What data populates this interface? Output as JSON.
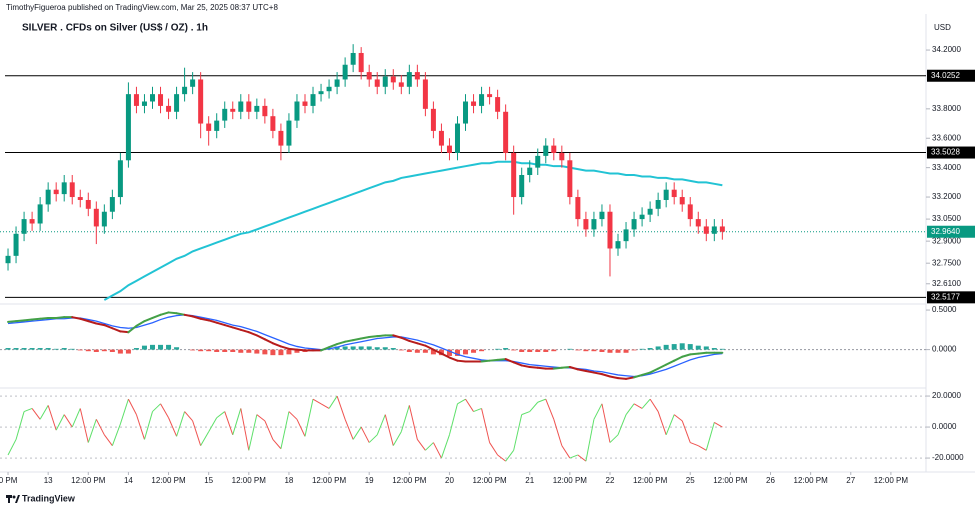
{
  "header": {
    "publisher": "TimothyFigueroa published on TradingView.com, Mar 25, 2025 08:37 UTC+8"
  },
  "footer": {
    "brand": "TradingView"
  },
  "chart_data": [
    {
      "type": "candlestick",
      "title": "SILVER . CFDs on Silver (US$ / OZ) . 1h",
      "currency": "USD",
      "x": [
        0,
        1,
        2,
        3,
        4,
        5,
        6,
        7,
        8,
        9,
        10,
        11,
        12,
        13,
        14,
        15,
        16,
        17,
        18,
        19,
        20,
        21,
        22,
        23,
        24,
        25,
        26,
        27,
        28,
        29,
        30,
        31,
        32,
        33,
        34,
        35,
        36,
        37,
        38,
        39,
        40,
        41,
        42,
        43,
        44,
        45,
        46,
        47,
        48,
        49,
        50,
        51,
        52,
        53,
        54,
        55,
        56,
        57,
        58,
        59,
        60,
        61,
        62,
        63,
        64,
        65,
        66,
        67,
        68,
        69,
        70,
        71,
        72,
        73,
        74,
        75,
        76,
        77,
        78,
        79,
        80,
        81,
        82,
        83,
        84,
        85,
        86,
        87,
        88,
        89
      ],
      "open": [
        32.75,
        32.8,
        32.95,
        33.05,
        33.02,
        33.15,
        33.25,
        33.22,
        33.3,
        33.2,
        33.18,
        33.12,
        33.0,
        33.1,
        33.2,
        33.45,
        33.9,
        33.82,
        33.85,
        33.9,
        33.82,
        33.78,
        33.9,
        33.95,
        34.0,
        33.7,
        33.65,
        33.72,
        33.8,
        33.78,
        33.85,
        33.78,
        33.82,
        33.75,
        33.65,
        33.55,
        33.72,
        33.85,
        33.82,
        33.9,
        33.92,
        33.95,
        34.0,
        34.1,
        34.18,
        34.05,
        34.0,
        33.95,
        34.02,
        33.98,
        33.95,
        34.05,
        34.0,
        33.8,
        33.65,
        33.55,
        33.5,
        33.7,
        33.85,
        33.82,
        33.9,
        33.88,
        33.78,
        33.5,
        33.2,
        33.35,
        33.4,
        33.48,
        33.55,
        33.5,
        33.45,
        33.2,
        33.05,
        32.98,
        33.05,
        33.1,
        32.85,
        32.9,
        32.98,
        33.05,
        33.08,
        33.12,
        33.18,
        33.25,
        33.2,
        33.15,
        33.05,
        33.0,
        32.95,
        33.0
      ],
      "high": [
        32.85,
        33.0,
        33.1,
        33.1,
        33.2,
        33.3,
        33.3,
        33.35,
        33.35,
        33.25,
        33.23,
        33.17,
        33.15,
        33.25,
        33.5,
        33.98,
        33.95,
        33.9,
        33.95,
        33.95,
        33.87,
        33.95,
        34.08,
        34.05,
        34.05,
        33.75,
        33.77,
        33.85,
        33.85,
        33.9,
        33.9,
        33.87,
        33.87,
        33.8,
        33.7,
        33.77,
        33.9,
        33.9,
        33.95,
        33.97,
        34.0,
        34.05,
        34.15,
        34.24,
        34.22,
        34.1,
        34.05,
        34.07,
        34.07,
        34.03,
        34.1,
        34.1,
        34.05,
        33.85,
        33.7,
        33.6,
        33.75,
        33.9,
        33.9,
        33.95,
        33.95,
        33.93,
        33.83,
        33.55,
        33.4,
        33.45,
        33.53,
        33.6,
        33.6,
        33.55,
        33.5,
        33.25,
        33.1,
        33.1,
        33.15,
        33.15,
        32.95,
        33.03,
        33.1,
        33.13,
        33.17,
        33.23,
        33.3,
        33.3,
        33.25,
        33.2,
        33.1,
        33.05,
        33.05,
        33.05
      ],
      "low": [
        32.7,
        32.75,
        32.9,
        32.97,
        32.97,
        33.1,
        33.17,
        33.17,
        33.15,
        33.13,
        33.07,
        32.88,
        32.95,
        33.05,
        33.15,
        33.4,
        33.77,
        33.77,
        33.8,
        33.77,
        33.73,
        33.73,
        33.85,
        33.9,
        33.6,
        33.55,
        33.6,
        33.67,
        33.73,
        33.73,
        33.73,
        33.73,
        33.7,
        33.6,
        33.45,
        33.5,
        33.67,
        33.77,
        33.77,
        33.85,
        33.87,
        33.9,
        33.95,
        34.05,
        34.0,
        33.95,
        33.9,
        33.9,
        33.93,
        33.9,
        33.9,
        33.95,
        33.75,
        33.6,
        33.5,
        33.45,
        33.45,
        33.65,
        33.77,
        33.77,
        33.83,
        33.73,
        33.45,
        33.08,
        33.15,
        33.3,
        33.35,
        33.43,
        33.45,
        33.4,
        33.15,
        33.0,
        32.93,
        32.93,
        33.0,
        32.66,
        32.8,
        32.85,
        32.93,
        33.0,
        33.03,
        33.07,
        33.13,
        33.15,
        33.1,
        33.0,
        32.95,
        32.9,
        32.9,
        32.91
      ],
      "close": [
        32.8,
        32.95,
        33.05,
        33.02,
        33.15,
        33.25,
        33.22,
        33.3,
        33.2,
        33.18,
        33.12,
        33.0,
        33.1,
        33.2,
        33.45,
        33.9,
        33.82,
        33.85,
        33.9,
        33.82,
        33.78,
        33.9,
        33.95,
        34.0,
        33.7,
        33.65,
        33.72,
        33.8,
        33.78,
        33.85,
        33.78,
        33.82,
        33.75,
        33.65,
        33.55,
        33.72,
        33.85,
        33.82,
        33.9,
        33.92,
        33.95,
        34.0,
        34.1,
        34.18,
        34.05,
        34.0,
        33.95,
        34.02,
        33.98,
        33.95,
        34.05,
        34.0,
        33.8,
        33.65,
        33.55,
        33.5,
        33.7,
        33.85,
        33.82,
        33.9,
        33.88,
        33.78,
        33.5,
        33.2,
        33.35,
        33.4,
        33.48,
        33.55,
        33.5,
        33.45,
        33.2,
        33.05,
        32.98,
        33.05,
        33.1,
        32.85,
        32.9,
        32.98,
        33.05,
        33.08,
        33.12,
        33.18,
        33.25,
        33.2,
        33.15,
        33.05,
        33.0,
        32.95,
        33.0,
        32.964
      ],
      "up_color": "#089981",
      "down_color": "#f23645",
      "overlays": [
        {
          "color": "#22c3d4",
          "values": [
            null,
            null,
            null,
            null,
            null,
            null,
            null,
            null,
            null,
            null,
            null,
            null,
            32.5,
            32.53,
            32.56,
            32.6,
            32.63,
            32.66,
            32.69,
            32.72,
            32.75,
            32.78,
            32.8,
            32.83,
            32.85,
            32.87,
            32.89,
            32.91,
            32.93,
            32.95,
            32.96,
            32.98,
            33.0,
            33.02,
            33.04,
            33.06,
            33.08,
            33.1,
            33.12,
            33.14,
            33.16,
            33.18,
            33.2,
            33.22,
            33.24,
            33.26,
            33.28,
            33.3,
            33.31,
            33.33,
            33.34,
            33.35,
            33.36,
            33.37,
            33.38,
            33.39,
            33.4,
            33.41,
            33.42,
            33.43,
            33.43,
            33.44,
            33.44,
            33.44,
            33.43,
            33.43,
            33.42,
            33.42,
            33.41,
            33.41,
            33.4,
            33.39,
            33.38,
            33.38,
            33.37,
            33.36,
            33.36,
            33.35,
            33.35,
            33.34,
            33.34,
            33.33,
            33.33,
            33.32,
            33.32,
            33.31,
            33.3,
            33.3,
            33.29,
            33.28
          ]
        }
      ],
      "levels": [
        34.0252,
        33.5028,
        32.5177
      ],
      "level_color": "#000000",
      "last_price": {
        "value": 32.964,
        "label": "32.9640"
      },
      "last_color": "#089981",
      "ylim": [
        32.486,
        34.418
      ],
      "yticks": [
        {
          "value": 34.2,
          "label": "34.2000"
        },
        {
          "value": 33.8,
          "label": "33.8000"
        },
        {
          "value": 33.6,
          "label": "33.6000"
        },
        {
          "value": 33.4,
          "label": "33.4000"
        },
        {
          "value": 33.2,
          "label": "33.2000"
        },
        {
          "value": 33.05,
          "label": "33.0500"
        },
        {
          "value": 32.9,
          "label": "32.9000"
        },
        {
          "value": 32.75,
          "label": "32.7500"
        },
        {
          "value": 32.61,
          "label": "32.6100"
        }
      ]
    },
    {
      "type": "macd",
      "fast": [
        0.35,
        0.36,
        0.37,
        0.38,
        0.39,
        0.4,
        0.4,
        0.41,
        0.41,
        0.39,
        0.36,
        0.33,
        0.31,
        0.27,
        0.23,
        0.22,
        0.3,
        0.36,
        0.4,
        0.44,
        0.47,
        0.46,
        0.44,
        0.42,
        0.39,
        0.37,
        0.34,
        0.31,
        0.28,
        0.25,
        0.22,
        0.18,
        0.13,
        0.08,
        0.04,
        0.01,
        0.0,
        -0.01,
        -0.01,
        -0.01,
        0.03,
        0.07,
        0.1,
        0.12,
        0.14,
        0.16,
        0.17,
        0.18,
        0.18,
        0.15,
        0.11,
        0.08,
        0.05,
        0.0,
        -0.05,
        -0.1,
        -0.14,
        -0.15,
        -0.15,
        -0.15,
        -0.14,
        -0.13,
        -0.12,
        -0.16,
        -0.2,
        -0.22,
        -0.23,
        -0.24,
        -0.24,
        -0.23,
        -0.22,
        -0.25,
        -0.27,
        -0.29,
        -0.31,
        -0.34,
        -0.36,
        -0.37,
        -0.35,
        -0.32,
        -0.29,
        -0.24,
        -0.19,
        -0.14,
        -0.09,
        -0.06,
        -0.05,
        -0.04,
        -0.04,
        -0.04
      ],
      "signal": [
        0.33,
        0.34,
        0.35,
        0.36,
        0.37,
        0.38,
        0.39,
        0.39,
        0.4,
        0.4,
        0.38,
        0.36,
        0.33,
        0.3,
        0.28,
        0.27,
        0.28,
        0.31,
        0.34,
        0.38,
        0.41,
        0.43,
        0.44,
        0.43,
        0.41,
        0.39,
        0.37,
        0.34,
        0.31,
        0.29,
        0.26,
        0.23,
        0.19,
        0.15,
        0.11,
        0.07,
        0.04,
        0.02,
        0.01,
        0.0,
        0.01,
        0.03,
        0.06,
        0.08,
        0.1,
        0.12,
        0.14,
        0.15,
        0.16,
        0.16,
        0.14,
        0.12,
        0.09,
        0.06,
        0.02,
        -0.02,
        -0.06,
        -0.09,
        -0.11,
        -0.13,
        -0.14,
        -0.14,
        -0.14,
        -0.15,
        -0.17,
        -0.19,
        -0.2,
        -0.21,
        -0.22,
        -0.23,
        -0.23,
        -0.24,
        -0.25,
        -0.27,
        -0.28,
        -0.3,
        -0.32,
        -0.33,
        -0.34,
        -0.33,
        -0.31,
        -0.28,
        -0.25,
        -0.21,
        -0.17,
        -0.13,
        -0.1,
        -0.08,
        -0.06,
        -0.05
      ],
      "histogram": [
        0.02,
        0.02,
        0.02,
        0.02,
        0.02,
        0.02,
        0.01,
        0.02,
        0.01,
        -0.01,
        -0.02,
        -0.03,
        -0.02,
        -0.03,
        -0.05,
        -0.05,
        0.02,
        0.05,
        0.06,
        0.06,
        0.06,
        0.03,
        0,
        -0.01,
        -0.02,
        -0.02,
        -0.03,
        -0.03,
        -0.03,
        -0.04,
        -0.04,
        -0.05,
        -0.06,
        -0.07,
        -0.07,
        -0.06,
        -0.04,
        -0.03,
        -0.02,
        -0.01,
        0.02,
        0.04,
        0.04,
        0.04,
        0.04,
        0.04,
        0.03,
        0.03,
        0.02,
        -0.01,
        -0.03,
        -0.04,
        -0.04,
        -0.06,
        -0.07,
        -0.08,
        -0.08,
        -0.06,
        -0.04,
        -0.02,
        0,
        0.01,
        0.02,
        -0.01,
        -0.03,
        -0.03,
        -0.03,
        -0.03,
        -0.02,
        0,
        0.01,
        -0.01,
        -0.02,
        -0.02,
        -0.03,
        -0.04,
        -0.04,
        -0.04,
        -0.01,
        0.01,
        0.02,
        0.04,
        0.06,
        0.07,
        0.08,
        0.07,
        0.05,
        0.04,
        0.02,
        0.01
      ],
      "fast_up_color": "#43a047",
      "fast_down_color": "#b71c1c",
      "signal_color": "#2962ff",
      "hist_up_color": "#26a69a",
      "hist_down_color": "#ef5350",
      "ylim": [
        -0.46,
        0.564
      ],
      "yticks": [
        {
          "value": 0.5,
          "label": "0.5000"
        },
        {
          "value": 0,
          "label": "0.0000"
        }
      ]
    },
    {
      "type": "line",
      "values": [
        -18,
        -8,
        10,
        12,
        5,
        14,
        -2,
        8,
        0,
        12,
        -10,
        5,
        -5,
        -12,
        2,
        18,
        8,
        -8,
        10,
        15,
        6,
        -6,
        10,
        4,
        -12,
        -3,
        6,
        10,
        -5,
        12,
        -15,
        8,
        4,
        -8,
        -14,
        10,
        5,
        -6,
        18,
        15,
        12,
        20,
        5,
        -8,
        0,
        -10,
        -5,
        8,
        -12,
        -3,
        14,
        -8,
        -15,
        -10,
        -20,
        -5,
        15,
        18,
        10,
        12,
        -10,
        -18,
        -22,
        -15,
        8,
        10,
        16,
        18,
        5,
        -12,
        -20,
        -18,
        -22,
        5,
        15,
        -10,
        -5,
        8,
        15,
        12,
        18,
        10,
        -5,
        8,
        4,
        -10,
        -12,
        -15,
        3,
        0
      ],
      "up_color": "#5ee06a",
      "down_color": "#ef5350",
      "ylim": [
        -27.7,
        23.9
      ],
      "yticks": [
        {
          "value": 20,
          "label": "20.0000"
        },
        {
          "value": 0,
          "label": "0.0000"
        },
        {
          "value": -20,
          "label": "-20.0000"
        }
      ],
      "xlim": [
        -1,
        114
      ],
      "xticks": [
        {
          "value": 0,
          "label": "0 PM"
        },
        {
          "value": 5,
          "label": "13"
        },
        {
          "value": 10,
          "label": "12:00 PM"
        },
        {
          "value": 15,
          "label": "14"
        },
        {
          "value": 20,
          "label": "12:00 PM"
        },
        {
          "value": 25,
          "label": "15"
        },
        {
          "value": 30,
          "label": "12:00 PM"
        },
        {
          "value": 35,
          "label": "18"
        },
        {
          "value": 40,
          "label": "12:00 PM"
        },
        {
          "value": 45,
          "label": "19"
        },
        {
          "value": 50,
          "label": "12:00 PM"
        },
        {
          "value": 55,
          "label": "20"
        },
        {
          "value": 60,
          "label": "12:00 PM"
        },
        {
          "value": 65,
          "label": "21"
        },
        {
          "value": 70,
          "label": "12:00 PM"
        },
        {
          "value": 75,
          "label": "22"
        },
        {
          "value": 80,
          "label": "12:00 PM"
        },
        {
          "value": 85,
          "label": "25"
        },
        {
          "value": 90,
          "label": "12:00 PM"
        },
        {
          "value": 95,
          "label": "26"
        },
        {
          "value": 100,
          "label": "12:00 PM"
        },
        {
          "value": 105,
          "label": "27"
        },
        {
          "value": 110,
          "label": "12:00 PM"
        }
      ]
    }
  ]
}
